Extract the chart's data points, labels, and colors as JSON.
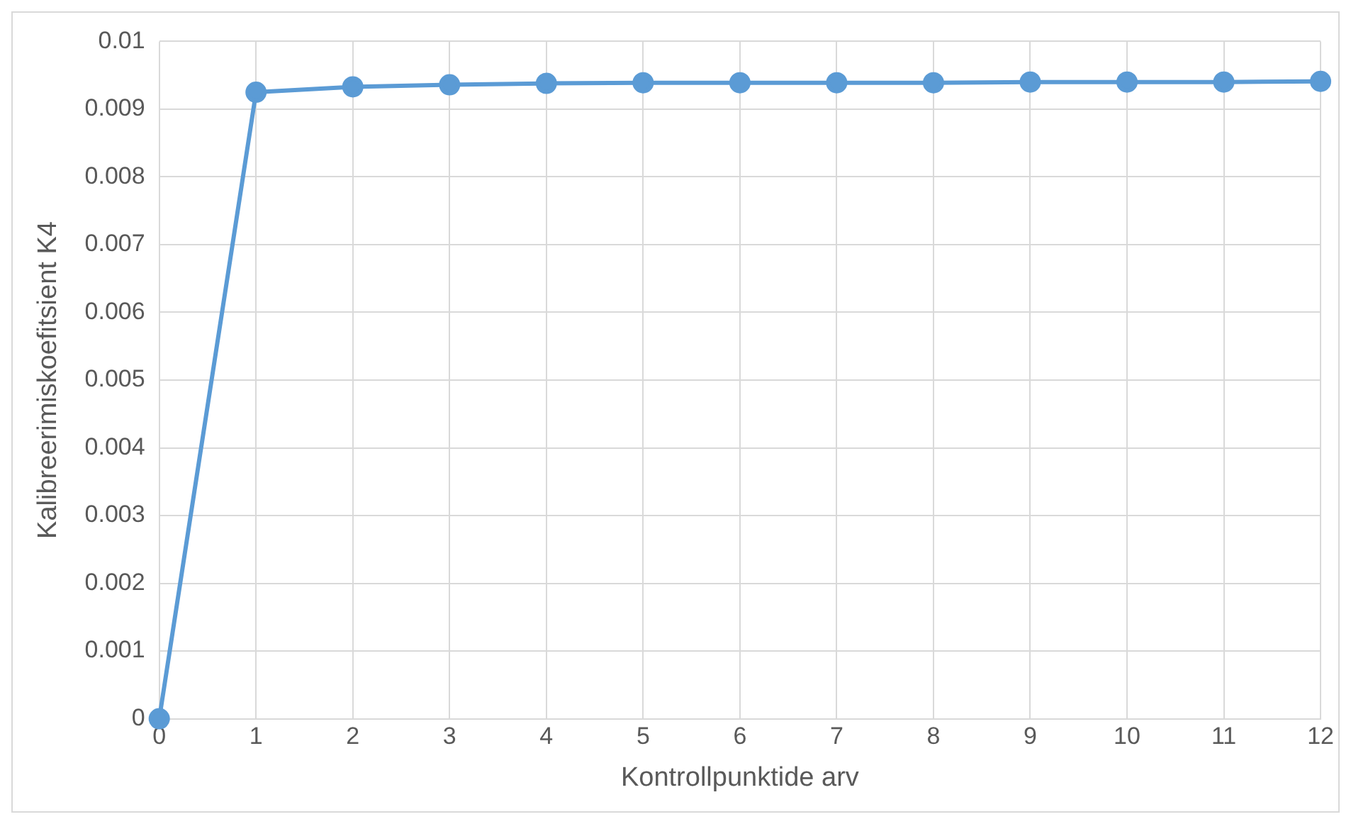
{
  "chart_data": {
    "type": "line",
    "xlabel": "Kontrollpunktide arv",
    "ylabel": "Kalibreerimiskoefitsient K4",
    "x": [
      0,
      1,
      2,
      3,
      4,
      5,
      6,
      7,
      8,
      9,
      10,
      11,
      12
    ],
    "series": [
      {
        "color": "#5b9bd5",
        "values": [
          0,
          0.00925,
          0.00933,
          0.00936,
          0.00938,
          0.00939,
          0.00939,
          0.00939,
          0.00939,
          0.0094,
          0.0094,
          0.0094,
          0.00941
        ]
      }
    ],
    "xlim": [
      0,
      12
    ],
    "xticks": [
      0,
      1,
      2,
      3,
      4,
      5,
      6,
      7,
      8,
      9,
      10,
      11,
      12
    ],
    "ylim": [
      0,
      0.01
    ],
    "yticks": [
      0,
      0.001,
      0.002,
      0.003,
      0.004,
      0.005,
      0.006,
      0.007,
      0.008,
      0.009,
      0.01
    ],
    "grid": true,
    "legend": false,
    "marker": "circle",
    "line_style": "solid"
  }
}
